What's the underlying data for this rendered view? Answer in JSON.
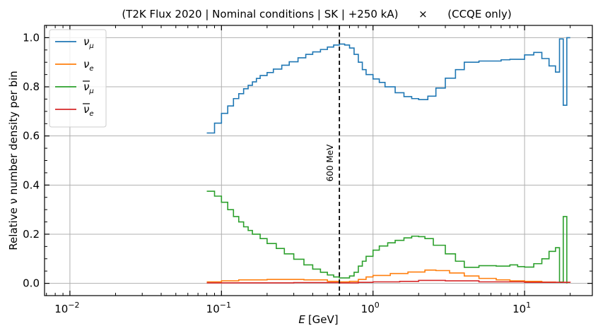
{
  "chart_data": {
    "type": "line",
    "title": "(T2K Flux 2020 | Nominal conditions | SK | +250 kA)      ×      (CCQE only)",
    "xlabel_var": "E",
    "xlabel_unit": "[GeV]",
    "ylabel": "Relative ν number density per bin",
    "xscale": "log",
    "xlim": [
      0.0068,
      28
    ],
    "ylim": [
      -0.05,
      1.05
    ],
    "grid": true,
    "legend_position": "upper-left",
    "x_ticks": [
      {
        "value": 0.01,
        "base": "10",
        "exp": "−2"
      },
      {
        "value": 0.1,
        "base": "10",
        "exp": "−1"
      },
      {
        "value": 1,
        "base": "10",
        "exp": "0"
      },
      {
        "value": 10,
        "base": "10",
        "exp": "1"
      }
    ],
    "y_ticks": [
      {
        "value": 0.0,
        "label": "0.0"
      },
      {
        "value": 0.2,
        "label": "0.2"
      },
      {
        "value": 0.4,
        "label": "0.4"
      },
      {
        "value": 0.6,
        "label": "0.6"
      },
      {
        "value": 0.8,
        "label": "0.8"
      },
      {
        "value": 1.0,
        "label": "1.0"
      }
    ],
    "vline": {
      "x": 0.6,
      "label": "600 MeV",
      "label_y": 0.49,
      "color": "#000000"
    },
    "series": [
      {
        "name": "ν",
        "sub": "μ",
        "bar": false,
        "color": "#1f77b4",
        "points": [
          [
            0.08,
            0.612
          ],
          [
            0.09,
            0.652
          ],
          [
            0.1,
            0.692
          ],
          [
            0.11,
            0.722
          ],
          [
            0.12,
            0.752
          ],
          [
            0.13,
            0.772
          ],
          [
            0.14,
            0.792
          ],
          [
            0.15,
            0.806
          ],
          [
            0.16,
            0.82
          ],
          [
            0.17,
            0.834
          ],
          [
            0.18,
            0.846
          ],
          [
            0.2,
            0.858
          ],
          [
            0.22,
            0.872
          ],
          [
            0.25,
            0.888
          ],
          [
            0.28,
            0.902
          ],
          [
            0.32,
            0.918
          ],
          [
            0.36,
            0.932
          ],
          [
            0.4,
            0.942
          ],
          [
            0.45,
            0.952
          ],
          [
            0.5,
            0.962
          ],
          [
            0.55,
            0.97
          ],
          [
            0.6,
            0.974
          ],
          [
            0.65,
            0.97
          ],
          [
            0.7,
            0.958
          ],
          [
            0.75,
            0.932
          ],
          [
            0.8,
            0.9
          ],
          [
            0.85,
            0.87
          ],
          [
            0.9,
            0.85
          ],
          [
            1.0,
            0.832
          ],
          [
            1.1,
            0.818
          ],
          [
            1.2,
            0.8
          ],
          [
            1.4,
            0.776
          ],
          [
            1.6,
            0.76
          ],
          [
            1.8,
            0.752
          ],
          [
            2.0,
            0.748
          ],
          [
            2.3,
            0.762
          ],
          [
            2.6,
            0.795
          ],
          [
            3.0,
            0.835
          ],
          [
            3.5,
            0.87
          ],
          [
            4.0,
            0.9
          ],
          [
            5.0,
            0.905
          ],
          [
            6.0,
            0.905
          ],
          [
            7.0,
            0.91
          ],
          [
            8.0,
            0.912
          ],
          [
            9.0,
            0.912
          ],
          [
            10.0,
            0.93
          ],
          [
            11.5,
            0.94
          ],
          [
            13.0,
            0.915
          ],
          [
            14.5,
            0.885
          ],
          [
            16.0,
            0.86
          ],
          [
            17.0,
            0.995
          ],
          [
            18.0,
            0.725
          ],
          [
            19.0,
            1.0
          ],
          [
            20.0,
            1.0
          ]
        ]
      },
      {
        "name": "ν",
        "sub": "e",
        "bar": false,
        "color": "#ff7f0e",
        "points": [
          [
            0.08,
            0.006
          ],
          [
            0.1,
            0.01
          ],
          [
            0.13,
            0.014
          ],
          [
            0.2,
            0.016
          ],
          [
            0.35,
            0.014
          ],
          [
            0.5,
            0.008
          ],
          [
            0.6,
            0.006
          ],
          [
            0.7,
            0.008
          ],
          [
            0.8,
            0.016
          ],
          [
            0.9,
            0.026
          ],
          [
            1.0,
            0.032
          ],
          [
            1.3,
            0.04
          ],
          [
            1.7,
            0.046
          ],
          [
            2.2,
            0.054
          ],
          [
            2.6,
            0.052
          ],
          [
            3.2,
            0.042
          ],
          [
            4.0,
            0.03
          ],
          [
            5.0,
            0.02
          ],
          [
            6.5,
            0.014
          ],
          [
            8.0,
            0.01
          ],
          [
            10.0,
            0.008
          ],
          [
            13.0,
            0.005
          ],
          [
            16.0,
            0.004
          ],
          [
            20.0,
            0.004
          ]
        ]
      },
      {
        "name": "ν",
        "sub": "μ",
        "bar": true,
        "color": "#2ca02c",
        "points": [
          [
            0.08,
            0.375
          ],
          [
            0.09,
            0.355
          ],
          [
            0.1,
            0.33
          ],
          [
            0.11,
            0.3
          ],
          [
            0.12,
            0.272
          ],
          [
            0.13,
            0.25
          ],
          [
            0.14,
            0.23
          ],
          [
            0.15,
            0.215
          ],
          [
            0.16,
            0.2
          ],
          [
            0.18,
            0.182
          ],
          [
            0.2,
            0.162
          ],
          [
            0.23,
            0.142
          ],
          [
            0.26,
            0.12
          ],
          [
            0.3,
            0.098
          ],
          [
            0.35,
            0.075
          ],
          [
            0.4,
            0.058
          ],
          [
            0.45,
            0.045
          ],
          [
            0.5,
            0.034
          ],
          [
            0.55,
            0.026
          ],
          [
            0.6,
            0.022
          ],
          [
            0.65,
            0.022
          ],
          [
            0.7,
            0.03
          ],
          [
            0.75,
            0.045
          ],
          [
            0.8,
            0.07
          ],
          [
            0.85,
            0.09
          ],
          [
            0.9,
            0.11
          ],
          [
            1.0,
            0.135
          ],
          [
            1.1,
            0.152
          ],
          [
            1.25,
            0.165
          ],
          [
            1.4,
            0.175
          ],
          [
            1.6,
            0.185
          ],
          [
            1.8,
            0.192
          ],
          [
            2.0,
            0.19
          ],
          [
            2.2,
            0.182
          ],
          [
            2.5,
            0.155
          ],
          [
            3.0,
            0.12
          ],
          [
            3.5,
            0.09
          ],
          [
            4.0,
            0.065
          ],
          [
            5.0,
            0.072
          ],
          [
            6.5,
            0.07
          ],
          [
            8.0,
            0.075
          ],
          [
            9.0,
            0.068
          ],
          [
            10.0,
            0.066
          ],
          [
            11.5,
            0.08
          ],
          [
            13.0,
            0.1
          ],
          [
            14.5,
            0.13
          ],
          [
            16.0,
            0.145
          ],
          [
            17.0,
            0.005
          ],
          [
            18.0,
            0.272
          ],
          [
            19.0,
            0.0
          ]
        ]
      },
      {
        "name": "ν",
        "sub": "e",
        "bar": true,
        "color": "#d62728",
        "points": [
          [
            0.08,
            0.002
          ],
          [
            0.3,
            0.003
          ],
          [
            0.6,
            0.002
          ],
          [
            0.8,
            0.004
          ],
          [
            1.0,
            0.006
          ],
          [
            1.5,
            0.008
          ],
          [
            2.0,
            0.012
          ],
          [
            3.0,
            0.01
          ],
          [
            5.0,
            0.006
          ],
          [
            10.0,
            0.004
          ],
          [
            20.0,
            0.003
          ]
        ]
      }
    ]
  }
}
